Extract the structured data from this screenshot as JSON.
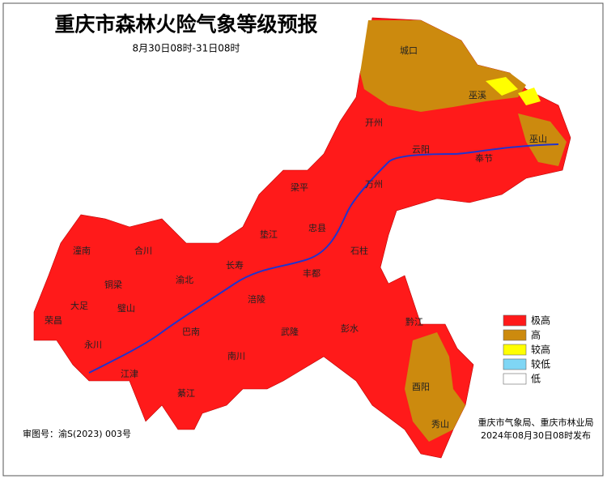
{
  "header": {
    "title": "重庆市森林火险气象等级预报",
    "subtitle": "8月30日08时-31日08时"
  },
  "legend": [
    {
      "label": "极高",
      "color": "#ff1a1a"
    },
    {
      "label": "高",
      "color": "#cc8a0e"
    },
    {
      "label": "较高",
      "color": "#ffff00"
    },
    {
      "label": "较低",
      "color": "#7fd6f5"
    },
    {
      "label": "低",
      "color": "#ffffff"
    }
  ],
  "districts": [
    "城口",
    "巫溪",
    "开州",
    "云阳",
    "奉节",
    "巫山",
    "梁平",
    "万州",
    "忠县",
    "垫江",
    "石柱",
    "长寿",
    "丰都",
    "涪陵",
    "武隆",
    "彭水",
    "黔江",
    "酉阳",
    "秀山",
    "南川",
    "綦江",
    "巴南",
    "江津",
    "永川",
    "荣昌",
    "大足",
    "潼南",
    "合川",
    "铜梁",
    "璧山",
    "渝北"
  ],
  "footer": {
    "approval": "审图号：渝S(2023) 003号",
    "issuer": "重庆市气象局、重庆市林业局",
    "issued": "2024年08月30日08时发布"
  }
}
